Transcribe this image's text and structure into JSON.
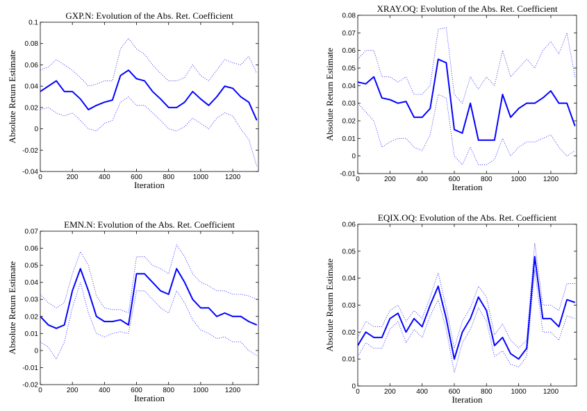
{
  "chart_data": [
    {
      "type": "line",
      "title": "GXP.N: Evolution of the Abs. Ret. Coefficient",
      "xlabel": "Iteration",
      "ylabel": "Absolute Return Estimate",
      "x": [
        0,
        50,
        100,
        150,
        200,
        250,
        300,
        350,
        400,
        450,
        500,
        550,
        600,
        650,
        700,
        750,
        800,
        850,
        900,
        950,
        1000,
        1050,
        1100,
        1150,
        1200,
        1250,
        1300,
        1350
      ],
      "series": [
        {
          "color": "#0000ff",
          "line_style": "solid",
          "values": [
            0.035,
            0.04,
            0.045,
            0.035,
            0.035,
            0.028,
            0.018,
            0.022,
            0.025,
            0.027,
            0.05,
            0.055,
            0.047,
            0.045,
            0.035,
            0.028,
            0.02,
            0.02,
            0.025,
            0.035,
            0.028,
            0.022,
            0.03,
            0.04,
            0.038,
            0.03,
            0.025,
            0.008
          ]
        },
        {
          "color": "#0000ff",
          "line_style": "dotted",
          "values": [
            0.055,
            0.058,
            0.065,
            0.06,
            0.055,
            0.048,
            0.04,
            0.042,
            0.045,
            0.045,
            0.075,
            0.085,
            0.075,
            0.07,
            0.06,
            0.052,
            0.045,
            0.045,
            0.048,
            0.06,
            0.05,
            0.045,
            0.055,
            0.065,
            0.062,
            0.06,
            0.068,
            0.052
          ]
        },
        {
          "color": "#0000ff",
          "line_style": "dotted",
          "values": [
            0.018,
            0.02,
            0.015,
            0.012,
            0.015,
            0.008,
            0.0,
            -0.002,
            0.005,
            0.008,
            0.025,
            0.03,
            0.022,
            0.022,
            0.015,
            0.008,
            0.0,
            -0.002,
            0.002,
            0.01,
            0.005,
            0.0,
            0.01,
            0.015,
            0.012,
            0.0,
            -0.01,
            -0.035
          ]
        }
      ],
      "xlim": [
        0,
        1360
      ],
      "xticks": [
        0,
        200,
        400,
        600,
        800,
        1000,
        1200
      ],
      "ylim": [
        -0.04,
        0.1
      ],
      "yticks": [
        -0.04,
        -0.02,
        0,
        0.02,
        0.04,
        0.06,
        0.08,
        0.1
      ]
    },
    {
      "type": "line",
      "title": "XRAY.OQ: Evolution of the Abs. Ret. Coefficient",
      "xlabel": "Iteration",
      "ylabel": "Absolute Return Estimate",
      "x": [
        0,
        50,
        100,
        150,
        200,
        250,
        300,
        350,
        400,
        450,
        500,
        550,
        600,
        650,
        700,
        750,
        800,
        850,
        900,
        950,
        1000,
        1050,
        1100,
        1150,
        1200,
        1250,
        1300,
        1350
      ],
      "series": [
        {
          "color": "#0000ff",
          "line_style": "solid",
          "values": [
            0.042,
            0.041,
            0.045,
            0.033,
            0.032,
            0.03,
            0.031,
            0.022,
            0.022,
            0.027,
            0.055,
            0.053,
            0.015,
            0.013,
            0.03,
            0.009,
            0.009,
            0.009,
            0.035,
            0.022,
            0.027,
            0.03,
            0.03,
            0.033,
            0.037,
            0.03,
            0.03,
            0.017
          ]
        },
        {
          "color": "#0000ff",
          "line_style": "dotted",
          "values": [
            0.055,
            0.06,
            0.06,
            0.045,
            0.045,
            0.042,
            0.045,
            0.035,
            0.035,
            0.04,
            0.072,
            0.073,
            0.035,
            0.03,
            0.045,
            0.038,
            0.045,
            0.04,
            0.06,
            0.045,
            0.05,
            0.055,
            0.05,
            0.06,
            0.065,
            0.058,
            0.07,
            0.045
          ]
        },
        {
          "color": "#0000ff",
          "line_style": "dotted",
          "values": [
            0.03,
            0.025,
            0.02,
            0.005,
            0.008,
            0.01,
            0.01,
            0.005,
            0.003,
            0.012,
            0.035,
            0.033,
            0.0,
            -0.005,
            0.005,
            -0.005,
            -0.005,
            -0.002,
            0.01,
            0.0,
            0.005,
            0.008,
            0.008,
            0.01,
            0.012,
            0.005,
            0.0,
            0.003
          ]
        }
      ],
      "xlim": [
        0,
        1360
      ],
      "xticks": [
        0,
        200,
        400,
        600,
        800,
        1000,
        1200
      ],
      "ylim": [
        -0.01,
        0.08
      ],
      "yticks": [
        -0.01,
        0,
        0.01,
        0.02,
        0.03,
        0.04,
        0.05,
        0.06,
        0.07,
        0.08
      ]
    },
    {
      "type": "line",
      "title": "EMN.N: Evolution of the Abs. Ret. Coefficient",
      "xlabel": "Iteration",
      "ylabel": "Absolute Return Estimate",
      "x": [
        0,
        50,
        100,
        150,
        200,
        250,
        300,
        350,
        400,
        450,
        500,
        550,
        600,
        650,
        700,
        750,
        800,
        850,
        900,
        950,
        1000,
        1050,
        1100,
        1150,
        1200,
        1250,
        1300,
        1350
      ],
      "series": [
        {
          "color": "#0000ff",
          "line_style": "solid",
          "values": [
            0.02,
            0.015,
            0.013,
            0.015,
            0.035,
            0.048,
            0.035,
            0.02,
            0.017,
            0.017,
            0.018,
            0.015,
            0.045,
            0.045,
            0.04,
            0.035,
            0.033,
            0.048,
            0.04,
            0.03,
            0.025,
            0.025,
            0.02,
            0.022,
            0.02,
            0.02,
            0.017,
            0.015
          ]
        },
        {
          "color": "#0000ff",
          "line_style": "dotted",
          "values": [
            0.033,
            0.028,
            0.025,
            0.028,
            0.045,
            0.058,
            0.05,
            0.032,
            0.025,
            0.024,
            0.024,
            0.022,
            0.055,
            0.055,
            0.05,
            0.048,
            0.045,
            0.062,
            0.055,
            0.045,
            0.04,
            0.038,
            0.035,
            0.035,
            0.033,
            0.033,
            0.032,
            0.03
          ]
        },
        {
          "color": "#0000ff",
          "line_style": "dotted",
          "values": [
            0.005,
            0.002,
            -0.005,
            0.005,
            0.025,
            0.04,
            0.022,
            0.01,
            0.008,
            0.01,
            0.011,
            0.01,
            0.035,
            0.035,
            0.03,
            0.025,
            0.022,
            0.035,
            0.028,
            0.018,
            0.012,
            0.01,
            0.007,
            0.008,
            0.005,
            0.005,
            0.0,
            -0.003
          ]
        }
      ],
      "xlim": [
        0,
        1360
      ],
      "xticks": [
        0,
        200,
        400,
        600,
        800,
        1000,
        1200
      ],
      "ylim": [
        -0.02,
        0.07
      ],
      "yticks": [
        -0.02,
        -0.01,
        0,
        0.01,
        0.02,
        0.03,
        0.04,
        0.05,
        0.06,
        0.07
      ]
    },
    {
      "type": "line",
      "title": "EQIX.OQ: Evolution of the Abs. Ret. Coefficient",
      "xlabel": "Iteration",
      "ylabel": "Absolute Return Estimate",
      "x": [
        0,
        50,
        100,
        150,
        200,
        250,
        300,
        350,
        400,
        450,
        500,
        550,
        600,
        650,
        700,
        750,
        800,
        850,
        900,
        950,
        1000,
        1050,
        1100,
        1150,
        1200,
        1250,
        1300,
        1350
      ],
      "series": [
        {
          "color": "#0000ff",
          "line_style": "solid",
          "values": [
            0.015,
            0.02,
            0.018,
            0.018,
            0.025,
            0.027,
            0.02,
            0.025,
            0.022,
            0.03,
            0.037,
            0.025,
            0.01,
            0.02,
            0.025,
            0.033,
            0.028,
            0.015,
            0.018,
            0.012,
            0.01,
            0.014,
            0.048,
            0.025,
            0.025,
            0.022,
            0.032,
            0.031
          ]
        },
        {
          "color": "#0000ff",
          "line_style": "dotted",
          "values": [
            0.018,
            0.024,
            0.022,
            0.022,
            0.028,
            0.03,
            0.024,
            0.028,
            0.025,
            0.033,
            0.042,
            0.029,
            0.014,
            0.024,
            0.029,
            0.037,
            0.033,
            0.019,
            0.023,
            0.017,
            0.014,
            0.017,
            0.053,
            0.03,
            0.03,
            0.028,
            0.038,
            0.038
          ]
        },
        {
          "color": "#0000ff",
          "line_style": "dotted",
          "values": [
            0.011,
            0.016,
            0.014,
            0.014,
            0.021,
            0.024,
            0.016,
            0.021,
            0.018,
            0.026,
            0.032,
            0.021,
            0.005,
            0.016,
            0.021,
            0.029,
            0.024,
            0.011,
            0.013,
            0.008,
            0.007,
            0.011,
            0.043,
            0.02,
            0.02,
            0.017,
            0.026,
            0.025
          ]
        }
      ],
      "xlim": [
        0,
        1360
      ],
      "xticks": [
        0,
        200,
        400,
        600,
        800,
        1000,
        1200
      ],
      "ylim": [
        0,
        0.06
      ],
      "yticks": [
        0,
        0.01,
        0.02,
        0.03,
        0.04,
        0.05,
        0.06
      ]
    }
  ]
}
